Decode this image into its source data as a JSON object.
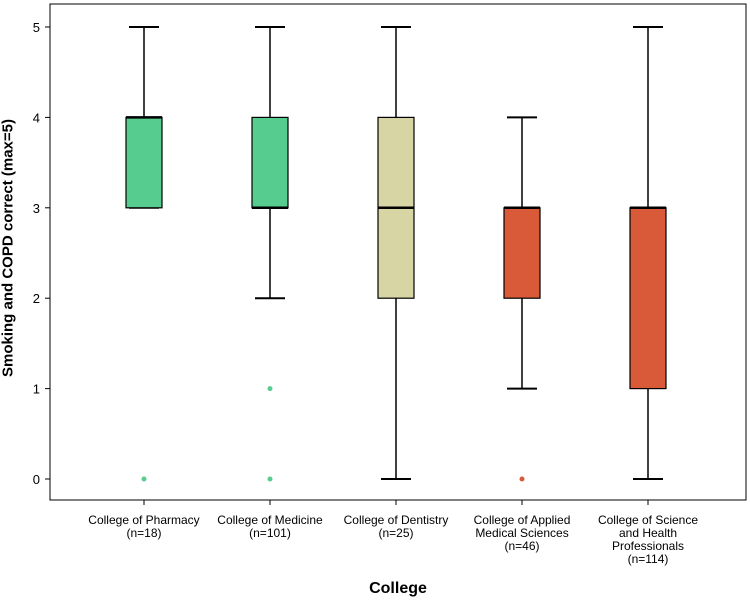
{
  "chart_data": {
    "type": "boxplot",
    "ylabel": "Smoking and COPD correct (max=5)",
    "xlabel": "College",
    "ylim": [
      0,
      5
    ],
    "yticks": [
      "0",
      "1",
      "2",
      "3",
      "4",
      "5"
    ],
    "grid": false,
    "categories": [
      {
        "name": "College of Pharmacy",
        "label_lines": [
          "College of Pharmacy",
          "(n=18)"
        ],
        "n": 18,
        "whisker_low": 3,
        "q1": 3,
        "median": 4,
        "q3": 4,
        "whisker_high": 5,
        "outliers": [
          0
        ],
        "color": "#57cc8f"
      },
      {
        "name": "College of Medicine",
        "label_lines": [
          "College of Medicine",
          "(n=101)"
        ],
        "n": 101,
        "whisker_low": 2,
        "q1": 3,
        "median": 3,
        "q3": 4,
        "whisker_high": 5,
        "outliers": [
          1,
          0
        ],
        "color": "#57cc8f"
      },
      {
        "name": "College of Dentistry",
        "label_lines": [
          "College of Dentistry",
          "(n=25)"
        ],
        "n": 25,
        "whisker_low": 0,
        "q1": 2,
        "median": 3,
        "q3": 4,
        "whisker_high": 5,
        "outliers": [],
        "color": "#d8d5a5"
      },
      {
        "name": "College of Applied Medical Sciences",
        "label_lines": [
          "College of Applied",
          "Medical Sciences",
          "(n=46)"
        ],
        "n": 46,
        "whisker_low": 1,
        "q1": 2,
        "median": 3,
        "q3": 3,
        "whisker_high": 4,
        "outliers": [
          0
        ],
        "color": "#d95a38"
      },
      {
        "name": "College of Science and Health Professionals",
        "label_lines": [
          "College of Science",
          "and Health",
          "Professionals",
          "(n=114)"
        ],
        "n": 114,
        "whisker_low": 0,
        "q1": 1,
        "median": 3,
        "q3": 3,
        "whisker_high": 5,
        "outliers": [],
        "color": "#d95a38"
      }
    ]
  }
}
